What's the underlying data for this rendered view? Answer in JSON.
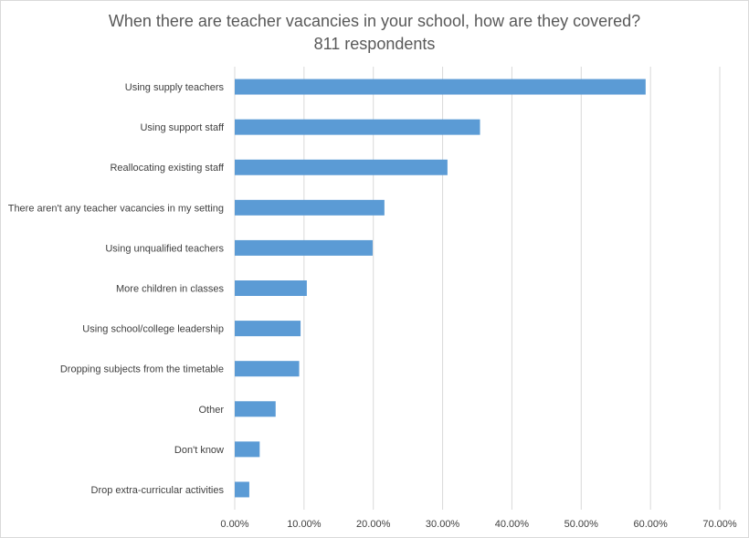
{
  "chart_data": {
    "type": "bar",
    "orientation": "horizontal",
    "title": "When there are teacher vacancies in your school, how are they covered?",
    "subtitle": "811 respondents",
    "categories": [
      "Using supply teachers",
      "Using support staff",
      "Reallocating existing staff",
      "There aren't any teacher vacancies in my setting",
      "Using unqualified teachers",
      "More children in classes",
      "Using school/college leadership",
      "Dropping subjects from the timetable",
      "Other",
      "Don't know",
      "Drop extra-curricular activities"
    ],
    "values": [
      0.593,
      0.354,
      0.307,
      0.216,
      0.199,
      0.104,
      0.095,
      0.093,
      0.059,
      0.036,
      0.021
    ],
    "xlim": [
      0,
      0.7
    ],
    "xticks": [
      "0.00%",
      "10.00%",
      "20.00%",
      "30.00%",
      "40.00%",
      "50.00%",
      "60.00%",
      "70.00%"
    ],
    "xlabel": "",
    "ylabel": "",
    "grid": "vertical",
    "legend": "none",
    "bar_color": "#5b9bd5",
    "grid_color": "#d9d9d9"
  }
}
